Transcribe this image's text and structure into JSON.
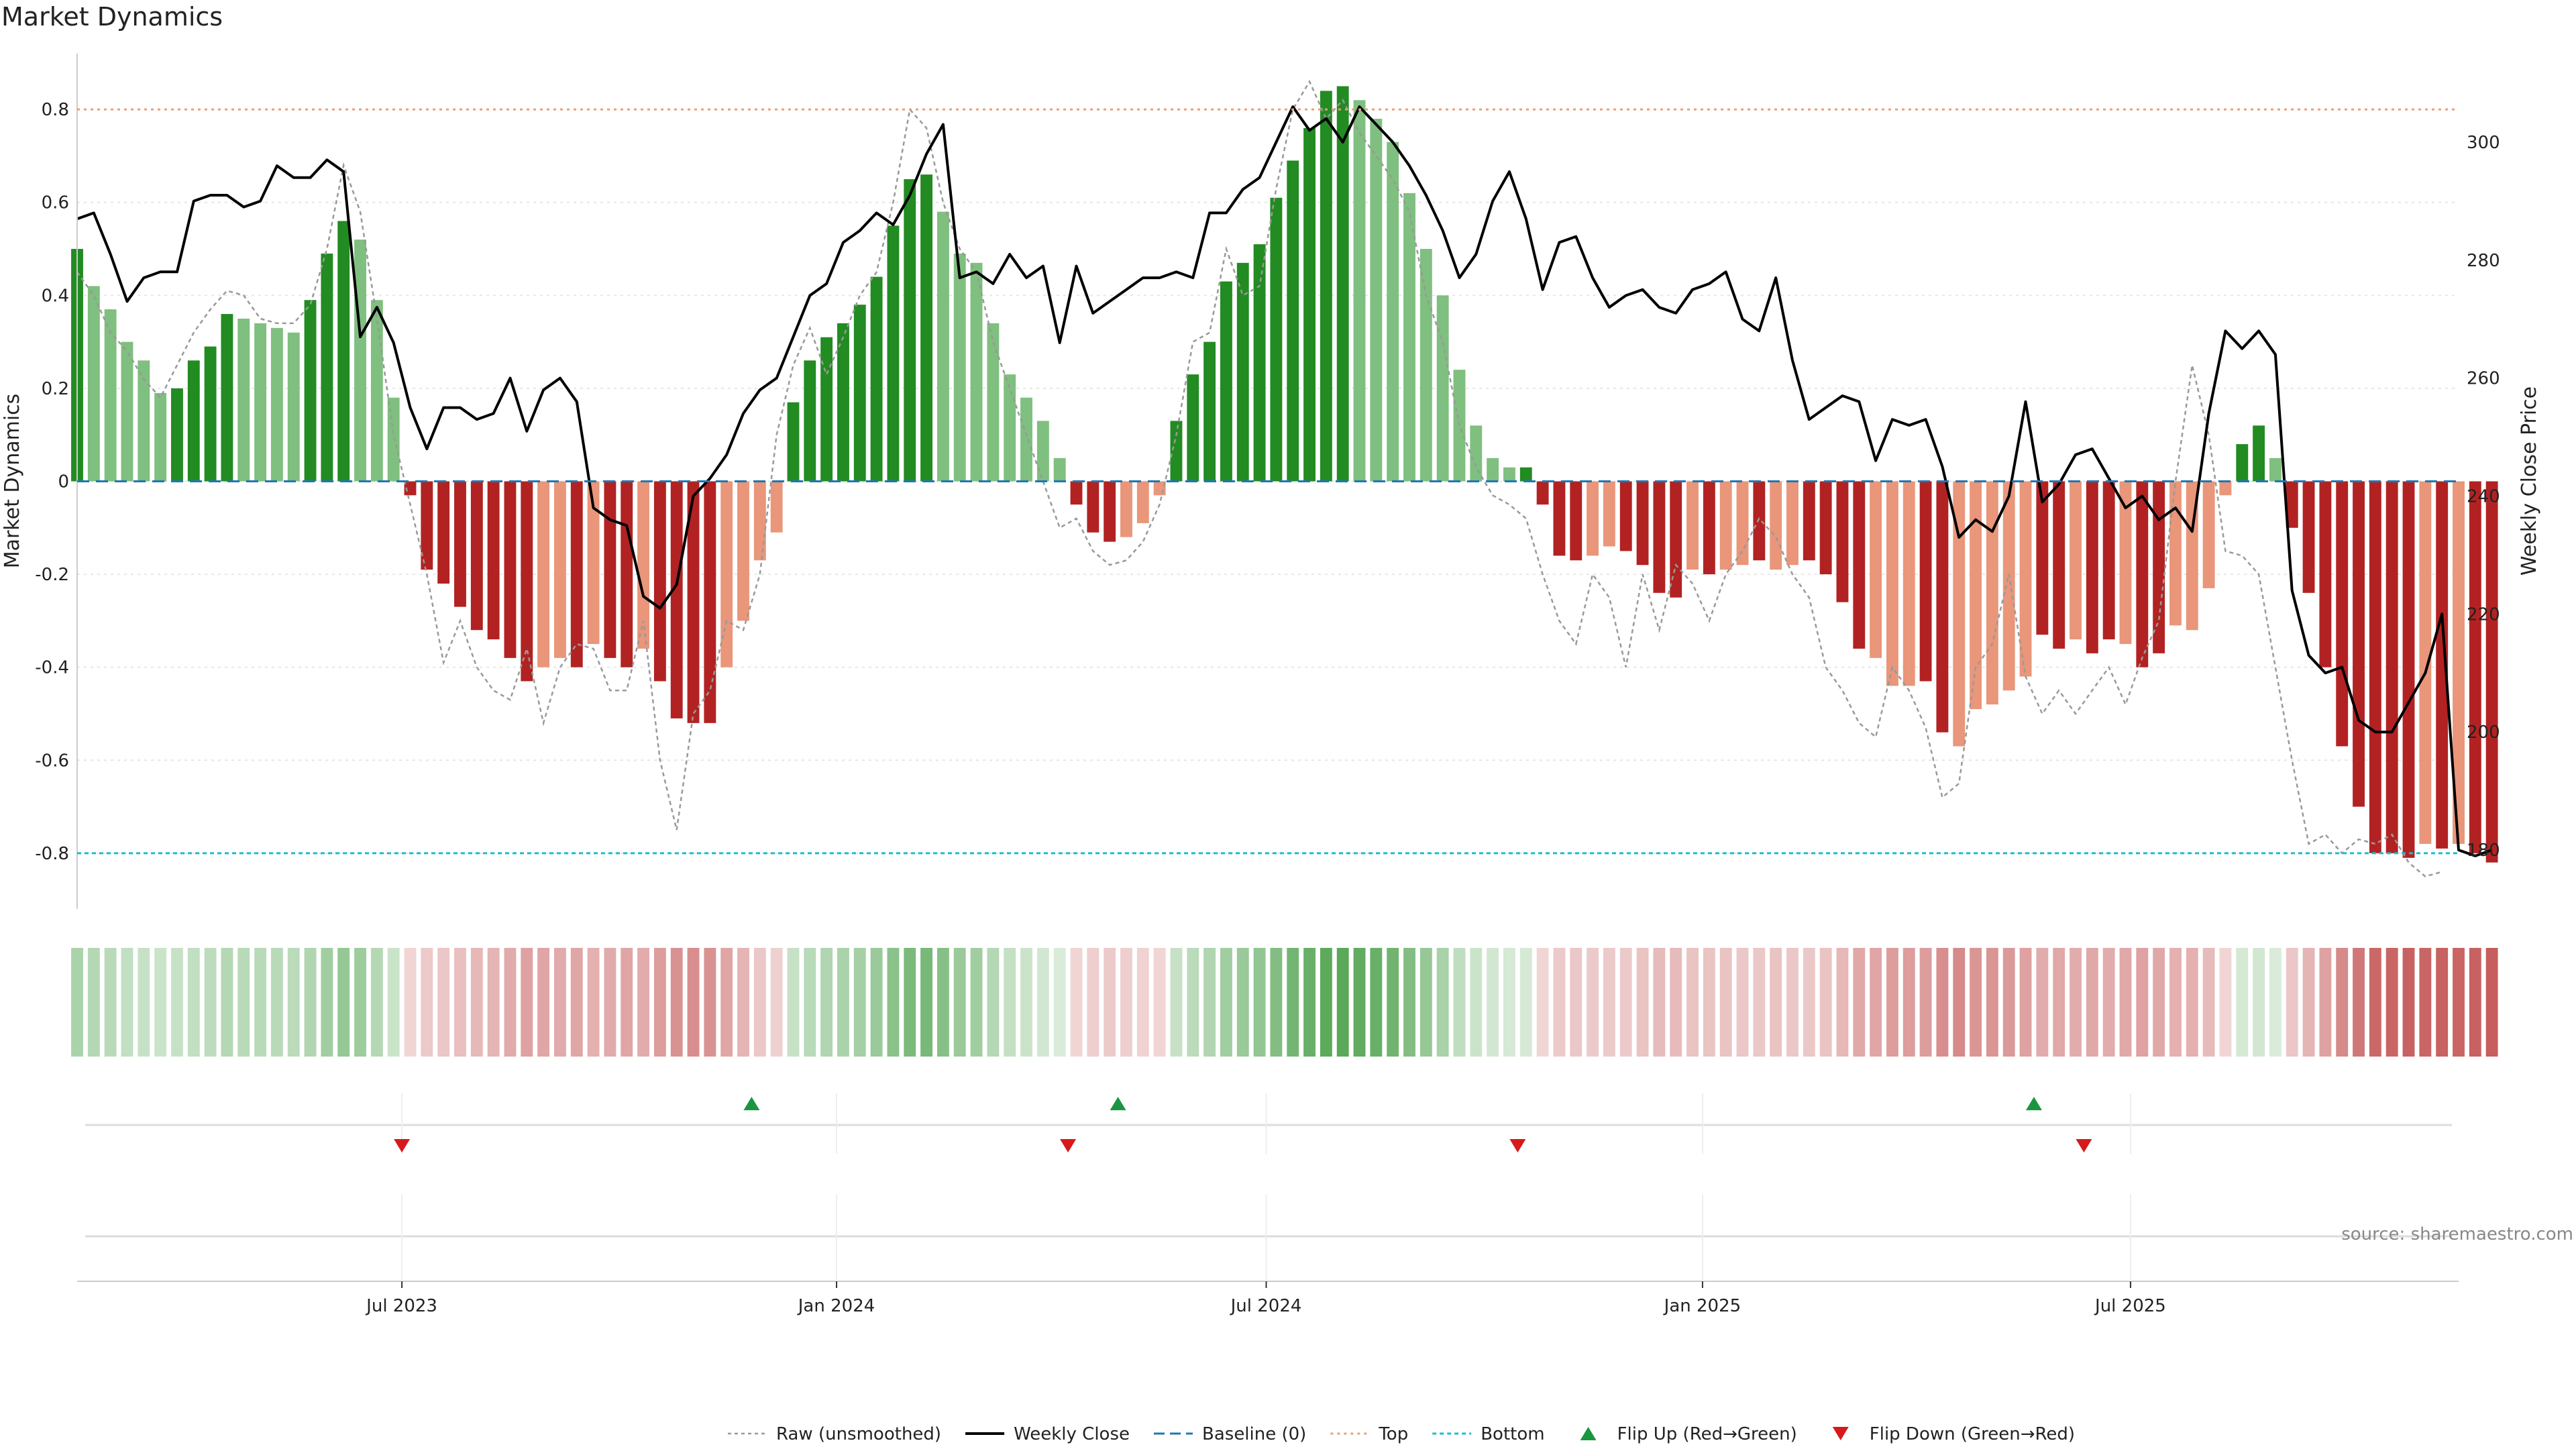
{
  "chart_data": {
    "type": "bar",
    "title": "Market Dynamics",
    "ylabel": "Market Dynamics",
    "ylabel_right": "Weekly Close Price",
    "source": "source: sharemaestro.com",
    "ylim": [
      -0.92,
      0.92
    ],
    "ylim_right": [
      170,
      315
    ],
    "yticks": [
      0.8,
      0.6,
      0.4,
      0.2,
      0,
      -0.2,
      -0.4,
      -0.6,
      -0.8
    ],
    "ytick_labels": [
      "0.8",
      "0.6",
      "0.4",
      "0.2",
      "0",
      "-0.2",
      "-0.4",
      "-0.6",
      "-0.8"
    ],
    "yticks_right": [
      300,
      280,
      260,
      240,
      220,
      200,
      180
    ],
    "ytick_labels_right": [
      "300",
      "280",
      "260",
      "240",
      "220",
      "200",
      "180"
    ],
    "x_range": [
      0,
      143
    ],
    "xticks": [
      {
        "label": "Jul 2023",
        "week": 19.5
      },
      {
        "label": "Jan 2024",
        "week": 45.6
      },
      {
        "label": "Jul 2024",
        "week": 71.4
      },
      {
        "label": "Jan 2025",
        "week": 97.6
      },
      {
        "label": "Jul 2025",
        "week": 123.3
      }
    ],
    "top_level": 0.8,
    "bottom_level": -0.8,
    "baseline": 0,
    "bar_values": [
      0.5,
      0.42,
      0.37,
      0.3,
      0.26,
      0.19,
      0.2,
      0.26,
      0.29,
      0.36,
      0.35,
      0.34,
      0.33,
      0.32,
      0.39,
      0.49,
      0.56,
      0.52,
      0.39,
      0.18,
      -0.03,
      -0.19,
      -0.22,
      -0.27,
      -0.32,
      -0.34,
      -0.38,
      -0.43,
      -0.4,
      -0.38,
      -0.4,
      -0.35,
      -0.38,
      -0.4,
      -0.36,
      -0.43,
      -0.51,
      -0.52,
      -0.52,
      -0.4,
      -0.3,
      -0.17,
      -0.11,
      0.17,
      0.26,
      0.31,
      0.34,
      0.38,
      0.44,
      0.55,
      0.65,
      0.66,
      0.58,
      0.49,
      0.47,
      0.34,
      0.23,
      0.18,
      0.13,
      0.05,
      -0.05,
      -0.11,
      -0.13,
      -0.12,
      -0.09,
      -0.03,
      0.13,
      0.23,
      0.3,
      0.43,
      0.47,
      0.51,
      0.61,
      0.69,
      0.76,
      0.84,
      0.85,
      0.82,
      0.78,
      0.73,
      0.62,
      0.5,
      0.4,
      0.24,
      0.12,
      0.05,
      0.03,
      0.03,
      -0.05,
      -0.16,
      -0.17,
      -0.16,
      -0.14,
      -0.15,
      -0.18,
      -0.24,
      -0.25,
      -0.19,
      -0.2,
      -0.19,
      -0.18,
      -0.17,
      -0.19,
      -0.18,
      -0.17,
      -0.2,
      -0.26,
      -0.36,
      -0.38,
      -0.44,
      -0.44,
      -0.43,
      -0.54,
      -0.57,
      -0.49,
      -0.48,
      -0.45,
      -0.42,
      -0.33,
      -0.36,
      -0.34,
      -0.37,
      -0.34,
      -0.35,
      -0.4,
      -0.37,
      -0.31,
      -0.32,
      -0.23,
      -0.03,
      0.08,
      0.12,
      0.05,
      -0.1,
      -0.24,
      -0.4,
      -0.57,
      -0.7,
      -0.8,
      -0.8,
      -0.81,
      -0.78,
      -0.79,
      -0.78,
      -0.8,
      -0.82
    ],
    "bar_state": [
      "dg",
      "lg",
      "lg",
      "lg",
      "lg",
      "lg",
      "dg",
      "dg",
      "dg",
      "dg",
      "lg",
      "lg",
      "lg",
      "lg",
      "dg",
      "dg",
      "dg",
      "lg",
      "lg",
      "lg",
      "dr",
      "dr",
      "dr",
      "dr",
      "dr",
      "dr",
      "dr",
      "dr",
      "lr",
      "lr",
      "dr",
      "lr",
      "dr",
      "dr",
      "lr",
      "dr",
      "dr",
      "dr",
      "dr",
      "lr",
      "lr",
      "lr",
      "lr",
      "dg",
      "dg",
      "dg",
      "dg",
      "dg",
      "dg",
      "dg",
      "dg",
      "dg",
      "lg",
      "lg",
      "lg",
      "lg",
      "lg",
      "lg",
      "lg",
      "lg",
      "dr",
      "dr",
      "dr",
      "lr",
      "lr",
      "lr",
      "dg",
      "dg",
      "dg",
      "dg",
      "dg",
      "dg",
      "dg",
      "dg",
      "dg",
      "dg",
      "dg",
      "lg",
      "lg",
      "lg",
      "lg",
      "lg",
      "lg",
      "lg",
      "lg",
      "lg",
      "lg",
      "dg",
      "dr",
      "dr",
      "dr",
      "lr",
      "lr",
      "dr",
      "dr",
      "dr",
      "dr",
      "lr",
      "dr",
      "lr",
      "lr",
      "dr",
      "lr",
      "lr",
      "dr",
      "dr",
      "dr",
      "dr",
      "lr",
      "lr",
      "lr",
      "dr",
      "dr",
      "lr",
      "lr",
      "lr",
      "lr",
      "lr",
      "dr",
      "dr",
      "lr",
      "dr",
      "dr",
      "lr",
      "dr",
      "dr",
      "lr",
      "lr",
      "lr",
      "lr",
      "dg",
      "dg",
      "lg",
      "dr",
      "dr",
      "dr",
      "dr",
      "dr",
      "dr",
      "dr",
      "dr",
      "lr",
      "dr",
      "lr",
      "dr",
      "dr"
    ],
    "raw_values": [
      0.45,
      0.4,
      0.32,
      0.28,
      0.22,
      0.18,
      0.25,
      0.32,
      0.37,
      0.41,
      0.4,
      0.35,
      0.34,
      0.34,
      0.38,
      0.5,
      0.68,
      0.58,
      0.35,
      0.1,
      -0.05,
      -0.2,
      -0.39,
      -0.3,
      -0.4,
      -0.45,
      -0.47,
      -0.36,
      -0.52,
      -0.4,
      -0.35,
      -0.36,
      -0.45,
      -0.45,
      -0.3,
      -0.6,
      -0.75,
      -0.5,
      -0.45,
      -0.3,
      -0.32,
      -0.2,
      0.1,
      0.25,
      0.33,
      0.23,
      0.31,
      0.4,
      0.45,
      0.6,
      0.8,
      0.76,
      0.6,
      0.5,
      0.45,
      0.3,
      0.2,
      0.1,
      0.0,
      -0.1,
      -0.08,
      -0.15,
      -0.18,
      -0.17,
      -0.13,
      -0.05,
      0.1,
      0.3,
      0.32,
      0.5,
      0.4,
      0.42,
      0.63,
      0.8,
      0.86,
      0.78,
      0.82,
      0.75,
      0.7,
      0.65,
      0.58,
      0.4,
      0.3,
      0.12,
      0.03,
      -0.03,
      -0.05,
      -0.08,
      -0.2,
      -0.3,
      -0.35,
      -0.2,
      -0.25,
      -0.4,
      -0.2,
      -0.32,
      -0.18,
      -0.22,
      -0.3,
      -0.2,
      -0.15,
      -0.08,
      -0.12,
      -0.2,
      -0.25,
      -0.4,
      -0.45,
      -0.52,
      -0.55,
      -0.4,
      -0.45,
      -0.53,
      -0.68,
      -0.65,
      -0.4,
      -0.35,
      -0.2,
      -0.42,
      -0.5,
      -0.45,
      -0.5,
      -0.45,
      -0.4,
      -0.48,
      -0.38,
      -0.3,
      0.0,
      0.25,
      0.1,
      -0.15,
      -0.16,
      -0.2,
      -0.4,
      -0.6,
      -0.78,
      -0.76,
      -0.8,
      -0.77,
      -0.78,
      -0.76,
      -0.82,
      -0.85,
      -0.84
    ],
    "close_values": [
      287,
      288,
      281,
      273,
      277,
      278,
      278,
      290,
      291,
      291,
      289,
      290,
      296,
      294,
      294,
      297,
      295,
      267,
      272,
      266,
      255,
      248,
      255,
      255,
      253,
      254,
      260,
      251,
      258,
      260,
      256,
      238,
      236,
      235,
      223,
      221,
      225,
      240,
      243,
      247,
      254,
      258,
      260,
      267,
      274,
      276,
      283,
      285,
      288,
      286,
      291,
      298,
      303,
      277,
      278,
      276,
      281,
      277,
      279,
      266,
      279,
      271,
      273,
      275,
      277,
      277,
      278,
      277,
      288,
      288,
      292,
      294,
      300,
      306,
      302,
      304,
      300,
      306,
      303,
      300,
      296,
      291,
      285,
      277,
      281,
      290,
      295,
      287,
      275,
      283,
      284,
      277,
      272,
      274,
      275,
      272,
      271,
      275,
      276,
      278,
      270,
      268,
      277,
      263,
      253,
      255,
      257,
      256,
      246,
      253,
      252,
      253,
      245,
      233,
      236,
      234,
      240,
      256,
      239,
      242,
      247,
      248,
      243,
      238,
      240,
      236,
      238,
      234,
      254,
      268,
      265,
      268,
      264,
      224,
      213,
      210,
      211,
      202,
      200,
      200,
      205,
      210,
      220,
      180,
      179,
      180
    ],
    "sentiment_state": [
      "lg",
      "lg",
      "lg",
      "lg",
      "lg",
      "lg",
      "lg",
      "lg",
      "lg",
      "lg",
      "lg",
      "lg",
      "lg",
      "lg",
      "lg",
      "lg",
      "lg",
      "lg",
      "lg",
      "lg",
      "lr",
      "lr",
      "lr",
      "lr",
      "lr",
      "lr",
      "lr",
      "lr",
      "lr",
      "lr",
      "lr",
      "lr",
      "lr",
      "lr",
      "lr",
      "lr",
      "lr",
      "lr",
      "lr",
      "lr",
      "lr",
      "lr",
      "lr",
      "lg",
      "lg",
      "lg",
      "lg",
      "lg",
      "lg",
      "lg",
      "lg",
      "lg",
      "lg",
      "lg",
      "lg",
      "lg",
      "lg",
      "lg",
      "lg",
      "lg",
      "lr",
      "lr",
      "lr",
      "lr",
      "lr",
      "lr",
      "lg",
      "lg",
      "lg",
      "lg",
      "lg",
      "lg",
      "lg",
      "lg",
      "lg",
      "lg",
      "lg",
      "lg",
      "lg",
      "lg",
      "lg",
      "lg",
      "lg",
      "lg",
      "lg",
      "lg",
      "lg",
      "lg",
      "lr",
      "lr",
      "lr",
      "lr",
      "lr",
      "lr",
      "lr",
      "lr",
      "lr",
      "lr",
      "lr",
      "lr",
      "lr",
      "lr",
      "lr",
      "lr",
      "lr",
      "lr",
      "lr",
      "lr",
      "lr",
      "lr",
      "lr",
      "lr",
      "lr",
      "lr",
      "lr",
      "lr",
      "lr",
      "lr",
      "lr",
      "lr",
      "lr",
      "lr",
      "lr",
      "lr",
      "lr",
      "lr",
      "lr",
      "lr",
      "lr",
      "lr",
      "lg",
      "lg",
      "lg",
      "lr",
      "lr",
      "lr",
      "lr",
      "lr",
      "lr",
      "lr",
      "lr",
      "lr",
      "lr",
      "lr",
      "lr",
      "lr"
    ],
    "sentiment_intensity": [
      0.45,
      0.4,
      0.37,
      0.33,
      0.3,
      0.28,
      0.3,
      0.33,
      0.35,
      0.4,
      0.38,
      0.37,
      0.37,
      0.36,
      0.42,
      0.5,
      0.56,
      0.52,
      0.4,
      0.28,
      0.22,
      0.28,
      0.3,
      0.34,
      0.38,
      0.4,
      0.45,
      0.5,
      0.48,
      0.45,
      0.48,
      0.42,
      0.45,
      0.48,
      0.44,
      0.52,
      0.58,
      0.6,
      0.58,
      0.48,
      0.4,
      0.3,
      0.25,
      0.3,
      0.38,
      0.42,
      0.45,
      0.48,
      0.54,
      0.62,
      0.7,
      0.72,
      0.64,
      0.54,
      0.5,
      0.4,
      0.32,
      0.28,
      0.24,
      0.2,
      0.22,
      0.26,
      0.28,
      0.26,
      0.24,
      0.22,
      0.3,
      0.36,
      0.42,
      0.5,
      0.54,
      0.58,
      0.66,
      0.74,
      0.8,
      0.86,
      0.88,
      0.84,
      0.8,
      0.76,
      0.66,
      0.56,
      0.46,
      0.34,
      0.28,
      0.24,
      0.22,
      0.22,
      0.22,
      0.28,
      0.3,
      0.28,
      0.28,
      0.28,
      0.32,
      0.36,
      0.36,
      0.32,
      0.32,
      0.32,
      0.3,
      0.3,
      0.32,
      0.3,
      0.3,
      0.32,
      0.38,
      0.46,
      0.48,
      0.52,
      0.52,
      0.52,
      0.6,
      0.62,
      0.56,
      0.56,
      0.54,
      0.5,
      0.44,
      0.46,
      0.44,
      0.46,
      0.44,
      0.46,
      0.5,
      0.46,
      0.42,
      0.42,
      0.36,
      0.22,
      0.22,
      0.24,
      0.2,
      0.3,
      0.4,
      0.5,
      0.62,
      0.72,
      0.8,
      0.82,
      0.84,
      0.82,
      0.84,
      0.82,
      0.84,
      0.86
    ],
    "flips_up": [
      40.5,
      62.5,
      117.5
    ],
    "flips_down": [
      19.5,
      59.5,
      86.5,
      120.5
    ],
    "colors": {
      "dark_green": "#228b22",
      "light_green": "#7fbf7f",
      "dark_red": "#b22222",
      "light_red": "#e9967a",
      "close_line": "#000000",
      "raw_line": "#999999",
      "baseline": "#1f77b4",
      "top": "#e9a07a",
      "bottom": "#17becf",
      "flip_up": "#1a9641",
      "flip_down": "#d7191c"
    },
    "legend": {
      "raw": "Raw (unsmoothed)",
      "close": "Weekly Close",
      "baseline": "Baseline (0)",
      "top": "Top",
      "bottom": "Bottom",
      "flip_up": "Flip Up (Red→Green)",
      "flip_down": "Flip Down (Green→Red)"
    },
    "legend_position": "bottom-center"
  }
}
